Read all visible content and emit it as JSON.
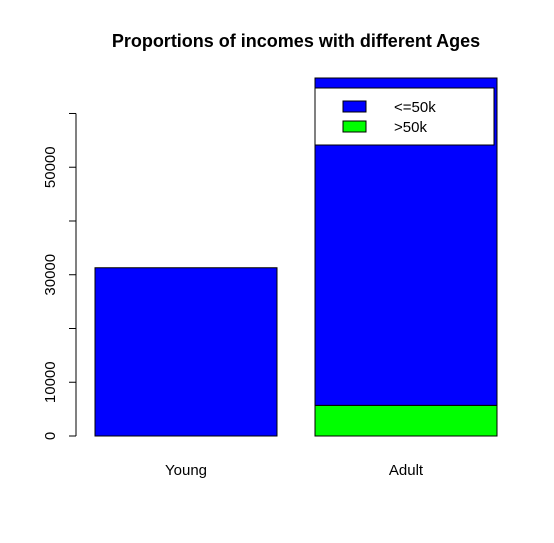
{
  "chart_data": {
    "type": "bar",
    "stacked": true,
    "title": "Proportions of incomes with different Ages",
    "xlabel": "",
    "ylabel": "",
    "categories": [
      "Young",
      "Adult"
    ],
    "series": [
      {
        "name": ">50k",
        "color": "#00ff00",
        "values": [
          0,
          5700
        ]
      },
      {
        "name": "<=50k",
        "color": "#0000ff",
        "values": [
          31300,
          60900
        ]
      }
    ],
    "ylim": [
      0,
      66600
    ],
    "yticks": [
      0,
      10000,
      20000,
      30000,
      40000,
      50000,
      60000
    ],
    "ytick_labels": [
      "0",
      "10000",
      "",
      "30000",
      "",
      "50000",
      ""
    ],
    "grid": false,
    "legend": {
      "position": "top-right",
      "entries": [
        {
          "label": "<=50k",
          "color": "#0000ff"
        },
        {
          "label": ">50k",
          "color": "#00ff00"
        }
      ]
    }
  }
}
